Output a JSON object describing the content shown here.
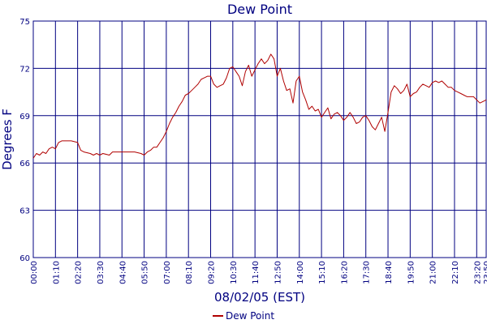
{
  "chart_data": {
    "type": "line",
    "title": "Dew Point",
    "xlabel": "08/02/05 (EST)",
    "ylabel": "Degrees F",
    "ylim": [
      60,
      75
    ],
    "yticks": [
      60,
      63,
      66,
      69,
      72,
      75
    ],
    "xlim": [
      "00:00",
      "23:50"
    ],
    "xticks": [
      "00:00",
      "01:10",
      "02:20",
      "03:30",
      "04:40",
      "05:50",
      "07:00",
      "08:10",
      "09:20",
      "10:30",
      "11:40",
      "12:50",
      "14:00",
      "15:10",
      "16:20",
      "17:30",
      "18:40",
      "19:50",
      "21:00",
      "22:10",
      "23:20",
      "23:50"
    ],
    "grid": true,
    "legend": "bottom-center",
    "colors": {
      "series": "#b00000",
      "grid": "#000080",
      "text": "#000080"
    },
    "series": [
      {
        "name": "Dew Point",
        "x": [
          "00:00",
          "00:10",
          "00:20",
          "00:30",
          "00:40",
          "00:50",
          "01:00",
          "01:10",
          "01:20",
          "01:30",
          "01:40",
          "02:00",
          "02:20",
          "02:30",
          "02:40",
          "03:00",
          "03:10",
          "03:20",
          "03:30",
          "03:40",
          "04:00",
          "04:10",
          "04:20",
          "04:40",
          "05:00",
          "05:20",
          "05:40",
          "05:50",
          "06:00",
          "06:10",
          "06:20",
          "06:30",
          "06:40",
          "06:50",
          "07:00",
          "07:10",
          "07:20",
          "07:30",
          "07:40",
          "07:50",
          "08:00",
          "08:10",
          "08:20",
          "08:30",
          "08:40",
          "08:50",
          "09:00",
          "09:10",
          "09:20",
          "09:30",
          "09:40",
          "09:50",
          "10:00",
          "10:10",
          "10:20",
          "10:30",
          "10:40",
          "10:50",
          "11:00",
          "11:10",
          "11:20",
          "11:30",
          "11:40",
          "11:50",
          "12:00",
          "12:10",
          "12:20",
          "12:30",
          "12:40",
          "12:50",
          "13:00",
          "13:10",
          "13:20",
          "13:30",
          "13:40",
          "13:50",
          "14:00",
          "14:10",
          "14:20",
          "14:30",
          "14:40",
          "14:50",
          "15:00",
          "15:10",
          "15:20",
          "15:30",
          "15:40",
          "15:50",
          "16:00",
          "16:10",
          "16:20",
          "16:30",
          "16:40",
          "16:50",
          "17:00",
          "17:10",
          "17:20",
          "17:30",
          "17:40",
          "17:50",
          "18:00",
          "18:10",
          "18:20",
          "18:30",
          "18:40",
          "18:50",
          "19:00",
          "19:10",
          "19:20",
          "19:30",
          "19:40",
          "19:50",
          "20:00",
          "20:10",
          "20:20",
          "20:30",
          "20:40",
          "20:50",
          "21:00",
          "21:10",
          "21:20",
          "21:30",
          "21:40",
          "21:50",
          "22:00",
          "22:10",
          "22:20",
          "22:30",
          "22:40",
          "22:50",
          "23:00",
          "23:10",
          "23:20",
          "23:30",
          "23:40",
          "23:50"
        ],
        "values": [
          66.3,
          66.6,
          66.5,
          66.7,
          66.6,
          66.9,
          67.0,
          66.9,
          67.3,
          67.4,
          67.4,
          67.4,
          67.3,
          66.8,
          66.7,
          66.6,
          66.5,
          66.6,
          66.5,
          66.6,
          66.5,
          66.7,
          66.7,
          66.7,
          66.7,
          66.7,
          66.6,
          66.5,
          66.7,
          66.8,
          67.0,
          67.0,
          67.3,
          67.6,
          68.0,
          68.5,
          68.9,
          69.2,
          69.6,
          69.9,
          70.3,
          70.4,
          70.6,
          70.8,
          71.0,
          71.3,
          71.4,
          71.5,
          71.5,
          71.0,
          70.8,
          70.9,
          71.0,
          71.4,
          72.0,
          72.1,
          71.8,
          71.5,
          70.9,
          71.8,
          72.2,
          71.5,
          71.9,
          72.3,
          72.6,
          72.3,
          72.5,
          72.9,
          72.6,
          71.5,
          72.0,
          71.2,
          70.6,
          70.7,
          69.8,
          71.2,
          71.5,
          70.5,
          70.0,
          69.4,
          69.6,
          69.3,
          69.4,
          68.9,
          69.2,
          69.5,
          68.8,
          69.1,
          69.2,
          69.0,
          68.7,
          68.9,
          69.2,
          68.9,
          68.5,
          68.6,
          68.9,
          69.0,
          68.7,
          68.3,
          68.1,
          68.5,
          68.9,
          68.0,
          69.2,
          70.5,
          70.9,
          70.7,
          70.4,
          70.6,
          71.0,
          70.2,
          70.4,
          70.5,
          70.8,
          71.0,
          70.9,
          70.8,
          71.1,
          71.2,
          71.1,
          71.2,
          71.0,
          70.8,
          70.8,
          70.6,
          70.5,
          70.4,
          70.3,
          70.2,
          70.2,
          70.2,
          70.0,
          69.8,
          69.9,
          70.0
        ]
      }
    ]
  }
}
